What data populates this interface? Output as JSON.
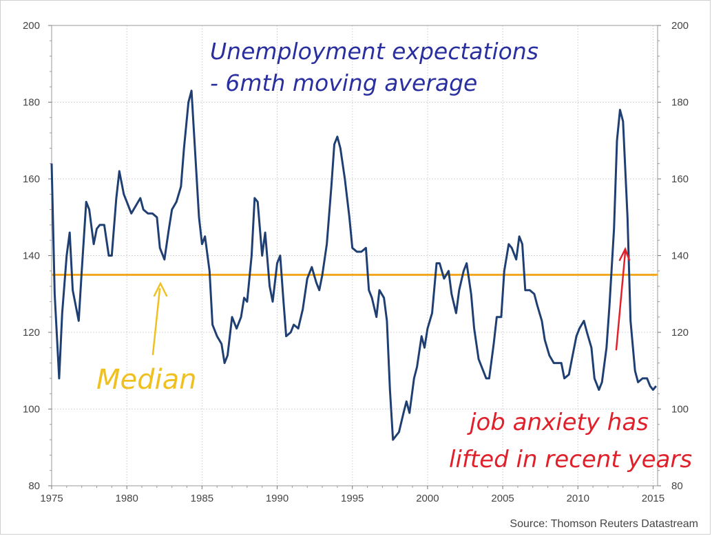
{
  "chart_data": {
    "type": "line",
    "title": "",
    "xlabel": "",
    "ylabel": "",
    "xlim": [
      1975,
      2015.3
    ],
    "ylim": [
      80,
      200
    ],
    "grid": true,
    "x_ticks": [
      "1975",
      "1980",
      "1985",
      "1990",
      "1995",
      "2000",
      "2005",
      "2010",
      "2015"
    ],
    "y_ticks_left": [
      "80",
      "100",
      "120",
      "140",
      "160",
      "180",
      "200"
    ],
    "y_ticks_right": [
      "80",
      "100",
      "120",
      "140",
      "160",
      "180",
      "200"
    ],
    "series": [
      {
        "color": "#1f3f73",
        "points": [
          [
            1975.0,
            164
          ],
          [
            1975.2,
            130
          ],
          [
            1975.5,
            108
          ],
          [
            1975.7,
            125
          ],
          [
            1976.0,
            140
          ],
          [
            1976.2,
            146
          ],
          [
            1976.4,
            131
          ],
          [
            1976.8,
            123
          ],
          [
            1977.0,
            136
          ],
          [
            1977.3,
            154
          ],
          [
            1977.5,
            152
          ],
          [
            1977.8,
            143
          ],
          [
            1978.0,
            147
          ],
          [
            1978.2,
            148
          ],
          [
            1978.5,
            148
          ],
          [
            1978.8,
            140
          ],
          [
            1979.0,
            140
          ],
          [
            1979.3,
            155
          ],
          [
            1979.5,
            162
          ],
          [
            1979.8,
            156
          ],
          [
            1980.0,
            154
          ],
          [
            1980.3,
            151
          ],
          [
            1980.6,
            153
          ],
          [
            1980.9,
            155
          ],
          [
            1981.1,
            152
          ],
          [
            1981.4,
            151
          ],
          [
            1981.7,
            151
          ],
          [
            1982.0,
            150
          ],
          [
            1982.2,
            142
          ],
          [
            1982.5,
            139
          ],
          [
            1982.8,
            147
          ],
          [
            1983.0,
            152
          ],
          [
            1983.3,
            154
          ],
          [
            1983.6,
            158
          ],
          [
            1983.8,
            168
          ],
          [
            1984.1,
            180
          ],
          [
            1984.3,
            183
          ],
          [
            1984.5,
            170
          ],
          [
            1984.8,
            150
          ],
          [
            1985.0,
            143
          ],
          [
            1985.2,
            145
          ],
          [
            1985.5,
            136
          ],
          [
            1985.7,
            122
          ],
          [
            1986.0,
            119
          ],
          [
            1986.3,
            117
          ],
          [
            1986.5,
            112
          ],
          [
            1986.7,
            114
          ],
          [
            1987.0,
            124
          ],
          [
            1987.3,
            121
          ],
          [
            1987.6,
            124
          ],
          [
            1987.8,
            129
          ],
          [
            1988.0,
            128
          ],
          [
            1988.3,
            140
          ],
          [
            1988.5,
            155
          ],
          [
            1988.7,
            154
          ],
          [
            1989.0,
            140
          ],
          [
            1989.2,
            146
          ],
          [
            1989.5,
            132
          ],
          [
            1989.7,
            128
          ],
          [
            1990.0,
            138
          ],
          [
            1990.2,
            140
          ],
          [
            1990.4,
            129
          ],
          [
            1990.6,
            119
          ],
          [
            1990.9,
            120
          ],
          [
            1991.1,
            122
          ],
          [
            1991.4,
            121
          ],
          [
            1991.7,
            126
          ],
          [
            1992.0,
            134
          ],
          [
            1992.3,
            137
          ],
          [
            1992.6,
            133
          ],
          [
            1992.8,
            131
          ],
          [
            1993.0,
            135
          ],
          [
            1993.3,
            143
          ],
          [
            1993.6,
            158
          ],
          [
            1993.8,
            169
          ],
          [
            1994.0,
            171
          ],
          [
            1994.2,
            168
          ],
          [
            1994.5,
            160
          ],
          [
            1994.8,
            150
          ],
          [
            1995.0,
            142
          ],
          [
            1995.3,
            141
          ],
          [
            1995.6,
            141
          ],
          [
            1995.9,
            142
          ],
          [
            1996.1,
            131
          ],
          [
            1996.3,
            129
          ],
          [
            1996.6,
            124
          ],
          [
            1996.8,
            131
          ],
          [
            1997.1,
            129
          ],
          [
            1997.3,
            123
          ],
          [
            1997.5,
            105
          ],
          [
            1997.7,
            92
          ],
          [
            1997.9,
            93
          ],
          [
            1998.1,
            94
          ],
          [
            1998.4,
            99
          ],
          [
            1998.6,
            102
          ],
          [
            1998.8,
            99
          ],
          [
            1999.1,
            108
          ],
          [
            1999.3,
            111
          ],
          [
            1999.6,
            119
          ],
          [
            1999.8,
            116
          ],
          [
            2000.0,
            121
          ],
          [
            2000.3,
            125
          ],
          [
            2000.6,
            138
          ],
          [
            2000.8,
            138
          ],
          [
            2001.1,
            134
          ],
          [
            2001.4,
            136
          ],
          [
            2001.6,
            130
          ],
          [
            2001.9,
            125
          ],
          [
            2002.1,
            131
          ],
          [
            2002.4,
            136
          ],
          [
            2002.6,
            138
          ],
          [
            2002.9,
            130
          ],
          [
            2003.1,
            121
          ],
          [
            2003.4,
            113
          ],
          [
            2003.6,
            111
          ],
          [
            2003.9,
            108
          ],
          [
            2004.1,
            108
          ],
          [
            2004.4,
            117
          ],
          [
            2004.6,
            124
          ],
          [
            2004.9,
            124
          ],
          [
            2005.1,
            136
          ],
          [
            2005.4,
            143
          ],
          [
            2005.6,
            142
          ],
          [
            2005.9,
            139
          ],
          [
            2006.1,
            145
          ],
          [
            2006.3,
            143
          ],
          [
            2006.5,
            131
          ],
          [
            2006.8,
            131
          ],
          [
            2007.1,
            130
          ],
          [
            2007.3,
            127
          ],
          [
            2007.6,
            123
          ],
          [
            2007.8,
            118
          ],
          [
            2008.1,
            114
          ],
          [
            2008.4,
            112
          ],
          [
            2008.6,
            112
          ],
          [
            2008.9,
            112
          ],
          [
            2009.1,
            108
          ],
          [
            2009.4,
            109
          ],
          [
            2009.6,
            113
          ],
          [
            2009.9,
            119
          ],
          [
            2010.1,
            121
          ],
          [
            2010.4,
            123
          ],
          [
            2010.6,
            120
          ],
          [
            2010.9,
            116
          ],
          [
            2011.1,
            108
          ],
          [
            2011.4,
            105
          ],
          [
            2011.6,
            107
          ],
          [
            2011.9,
            116
          ],
          [
            2012.1,
            127
          ],
          [
            2012.4,
            147
          ],
          [
            2012.6,
            170
          ],
          [
            2012.8,
            178
          ],
          [
            2013.0,
            175
          ],
          [
            2013.3,
            150
          ],
          [
            2013.5,
            123
          ],
          [
            2013.8,
            110
          ],
          [
            2014.0,
            107
          ],
          [
            2014.3,
            108
          ],
          [
            2014.6,
            108
          ],
          [
            2014.8,
            106
          ],
          [
            2015.0,
            105
          ],
          [
            2015.2,
            106
          ]
        ]
      }
    ],
    "reference_lines": [
      {
        "y": 135,
        "color": "#f2a61c"
      }
    ],
    "annotations": [
      {
        "text_line1": "Unemployment expectations",
        "text_line2": "- 6mth moving average",
        "color": "#2a2fa0"
      },
      {
        "text": "Median",
        "color": "#f0c020"
      },
      {
        "text_line1": "job anxiety has",
        "text_line2": "lifted in recent years",
        "color": "#e0202a"
      }
    ],
    "source": "Source: Thomson Reuters Datastream"
  }
}
